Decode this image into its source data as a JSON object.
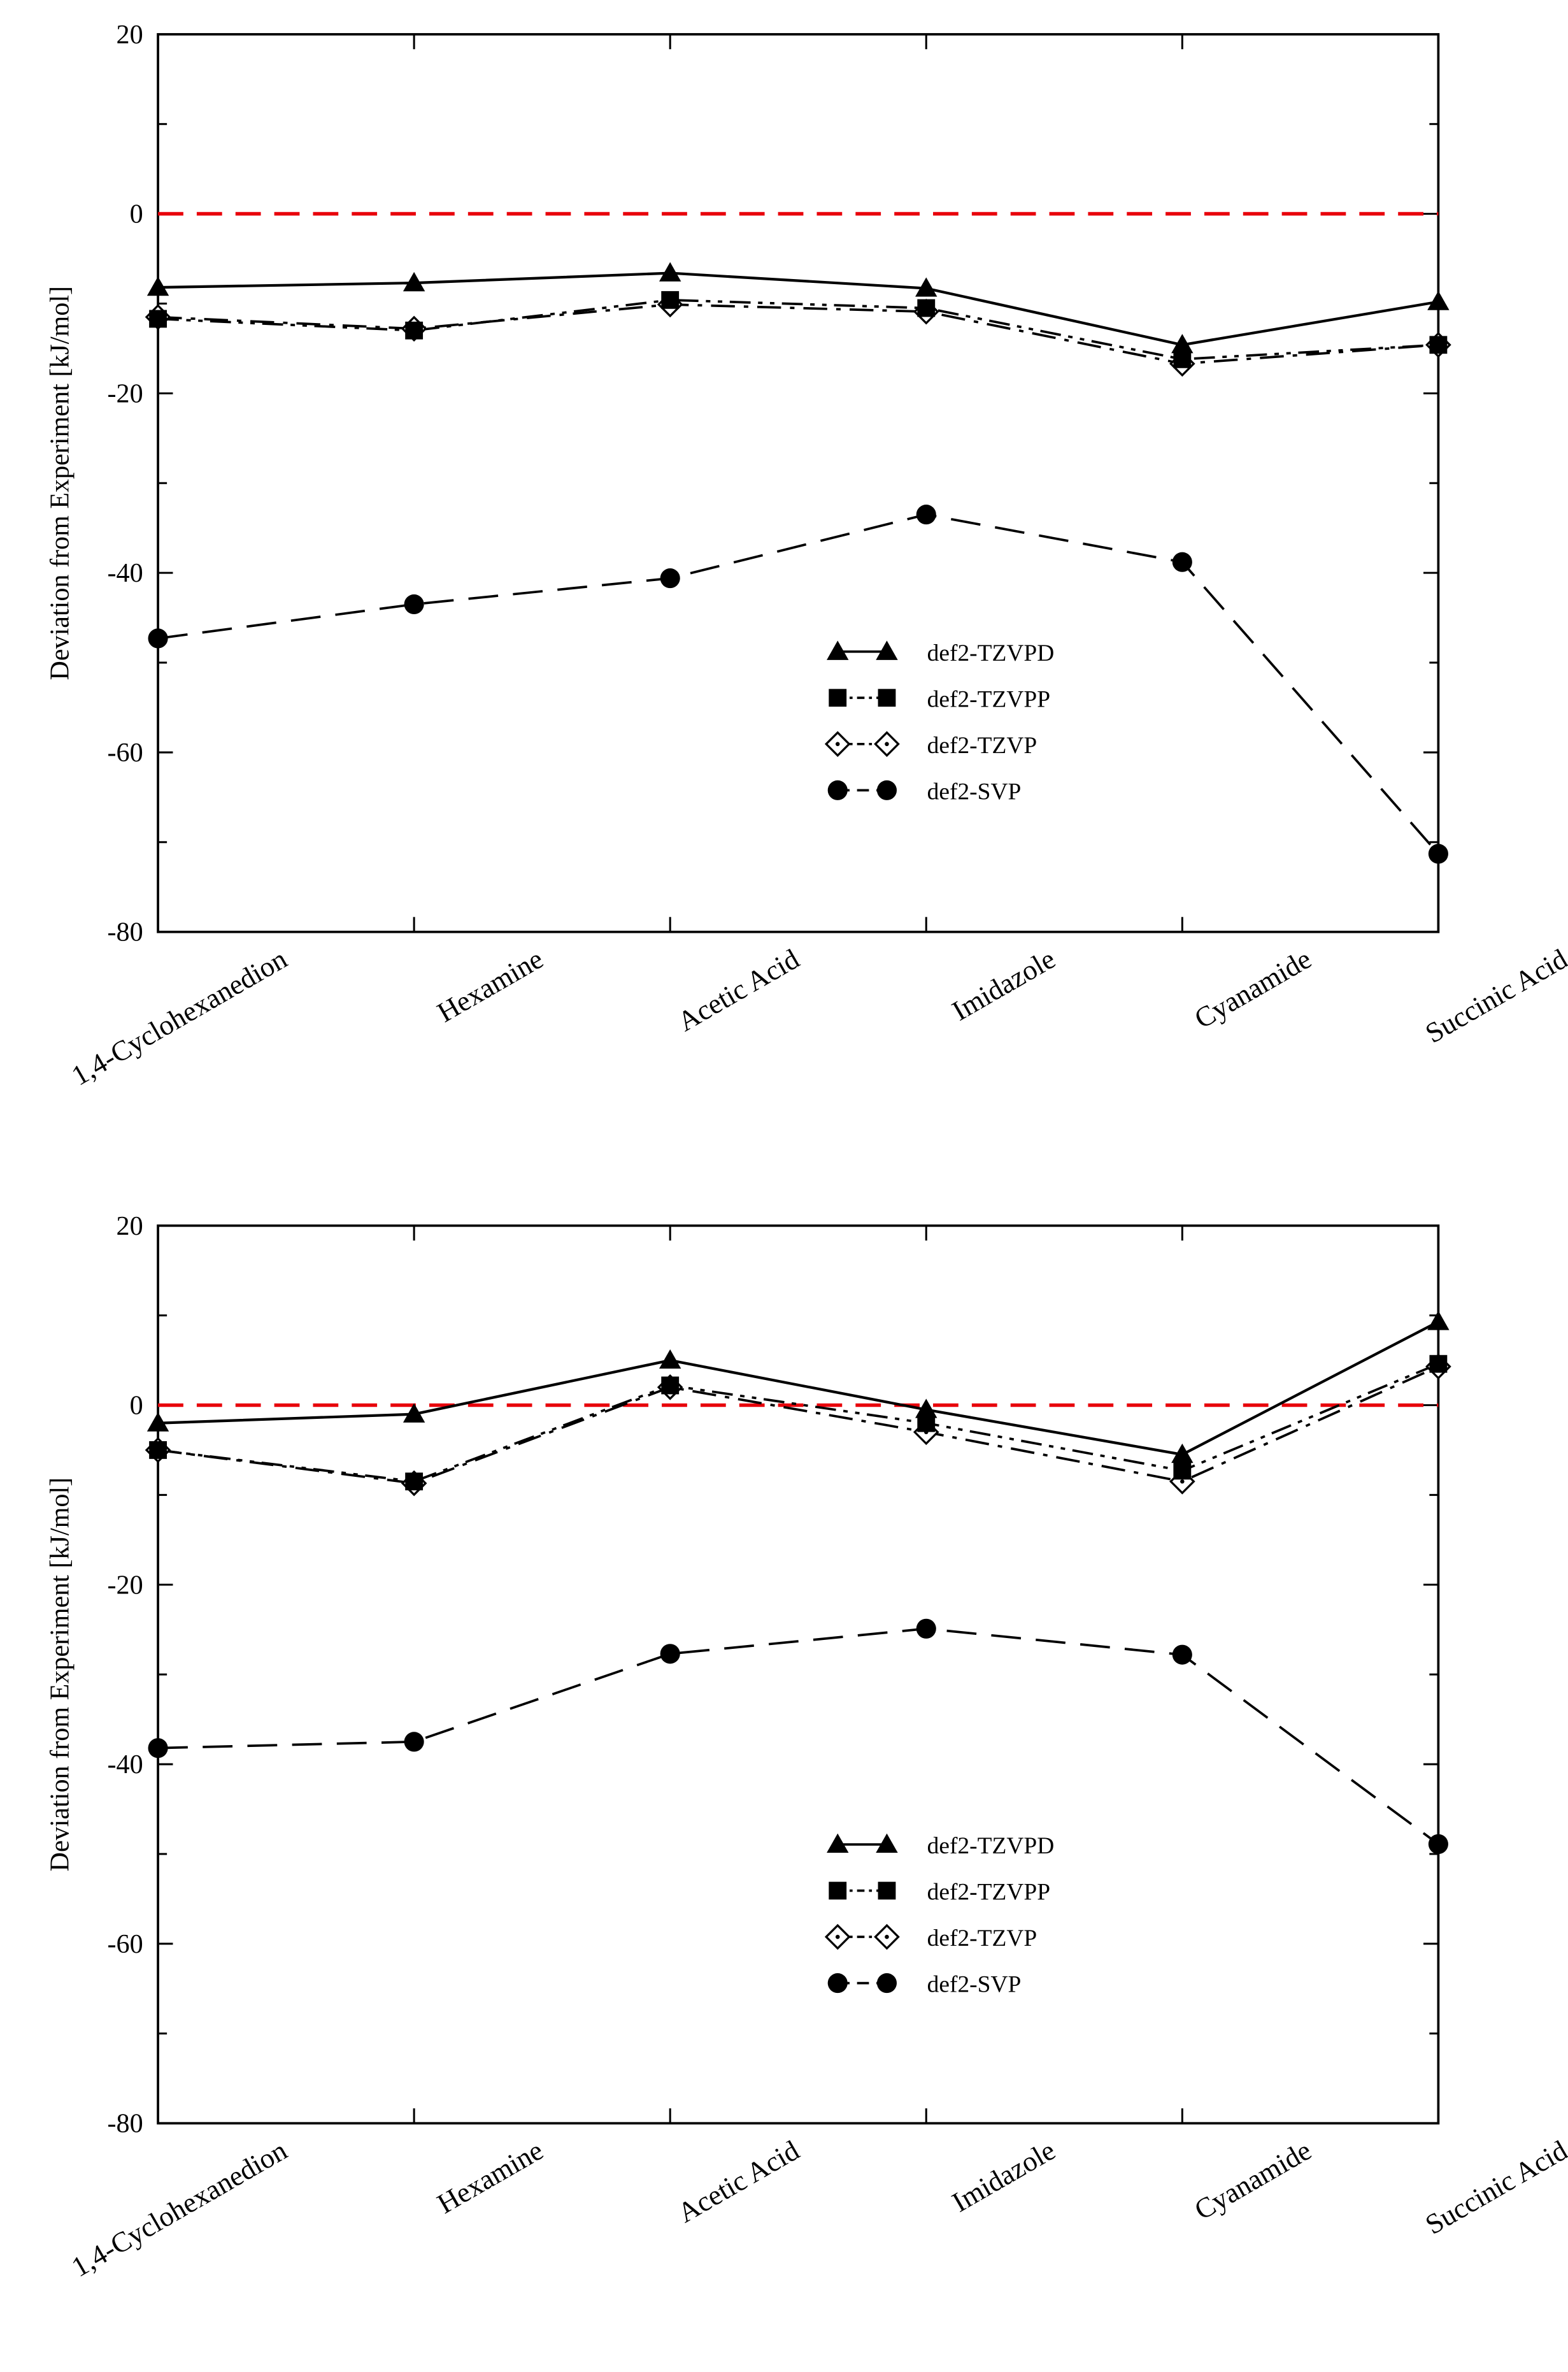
{
  "ylabel": "Deviation from Experiment [kJ/mol]",
  "reference_color": "#e8000b",
  "series_styles": [
    {
      "name": "def2-TZVPD",
      "marker": "triangle-filled",
      "line": "solid",
      "color": "#000000"
    },
    {
      "name": "def2-TZVPP",
      "marker": "square-filled",
      "line": "dash-dot-dot",
      "color": "#000000"
    },
    {
      "name": "def2-TZVP",
      "marker": "diamond-open-dot",
      "line": "dash-dot",
      "color": "#000000"
    },
    {
      "name": "def2-SVP",
      "marker": "circle-filled",
      "line": "dashed",
      "color": "#000000"
    }
  ],
  "chart_data": [
    {
      "type": "line",
      "categories": [
        "1,4-Cyclohexanedion",
        "Hexamine",
        "Acetic Acid",
        "Imidazole",
        "Cyanamide",
        "Succinic Acid"
      ],
      "xlabel": "",
      "ylabel": "Deviation from Experiment [kJ/mol]",
      "ylim": [
        -80,
        20
      ],
      "yticks": [
        "20",
        "0",
        "-20",
        "-40",
        "-60",
        "-80"
      ],
      "reference_line": 0,
      "legend_position": "lower-center-right",
      "series": [
        {
          "name": "def2-TZVPD",
          "values": [
            -8.2,
            -7.7,
            -6.6,
            -8.3,
            -14.6,
            -9.8
          ]
        },
        {
          "name": "def2-TZVPP",
          "values": [
            -11.7,
            -13.0,
            -9.6,
            -10.5,
            -16.2,
            -14.6
          ]
        },
        {
          "name": "def2-TZVP",
          "values": [
            -11.5,
            -12.8,
            -10.1,
            -10.9,
            -16.7,
            -14.6
          ]
        },
        {
          "name": "def2-SVP",
          "values": [
            -47.3,
            -43.5,
            -40.6,
            -33.5,
            -38.8,
            -71.3
          ]
        }
      ]
    },
    {
      "type": "line",
      "categories": [
        "1,4-Cyclohexanedion",
        "Hexamine",
        "Acetic Acid",
        "Imidazole",
        "Cyanamide",
        "Succinic Acid"
      ],
      "xlabel": "",
      "ylabel": "Deviation from Experiment [kJ/mol]",
      "ylim": [
        -80,
        20
      ],
      "yticks": [
        "20",
        "0",
        "-20",
        "-40",
        "-60",
        "-80"
      ],
      "reference_line": 0,
      "legend_position": "lower-center-right",
      "series": [
        {
          "name": "def2-TZVPD",
          "values": [
            -2.0,
            -1.0,
            5.0,
            -0.5,
            -5.5,
            9.3
          ]
        },
        {
          "name": "def2-TZVPP",
          "values": [
            -5.0,
            -8.5,
            2.2,
            -2.0,
            -7.3,
            4.6
          ]
        },
        {
          "name": "def2-TZVP",
          "values": [
            -5.0,
            -8.7,
            2.0,
            -3.0,
            -8.5,
            4.3
          ]
        },
        {
          "name": "def2-SVP",
          "values": [
            -38.2,
            -37.5,
            -27.7,
            -24.9,
            -27.8,
            -48.9
          ]
        }
      ]
    }
  ]
}
